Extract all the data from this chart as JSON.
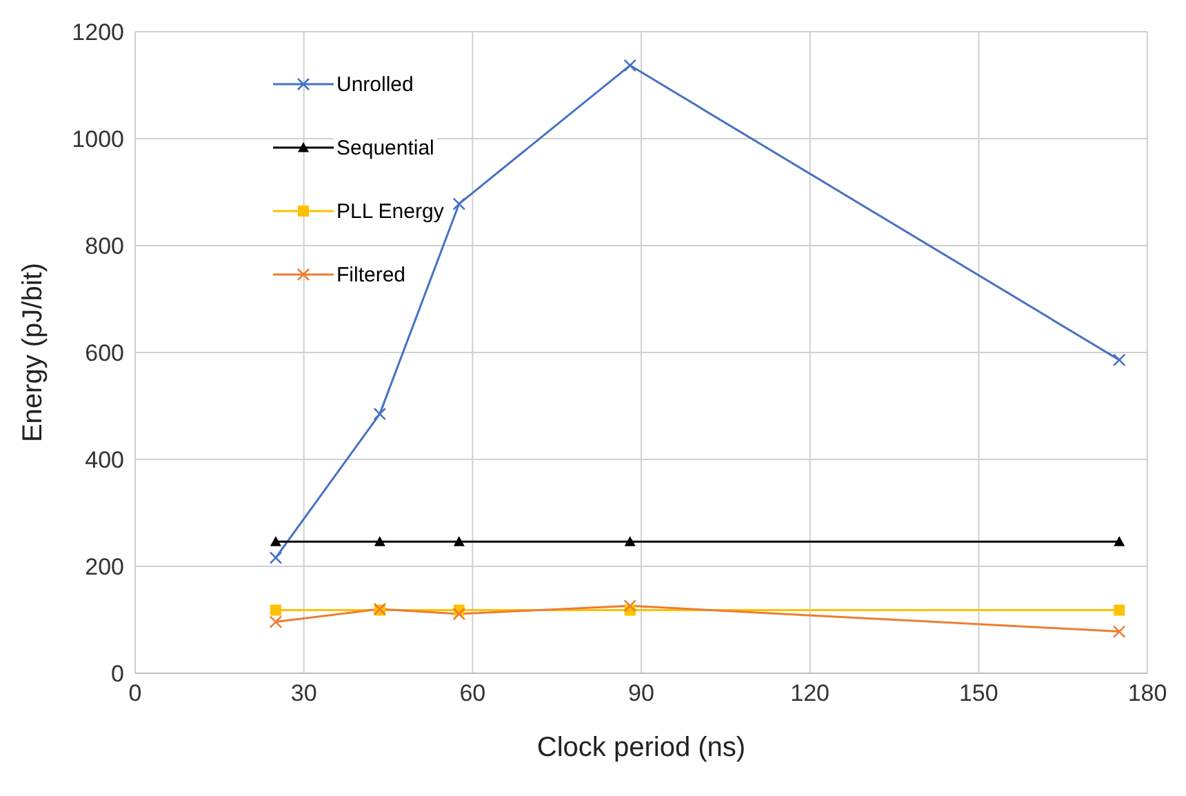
{
  "chart_data": {
    "type": "line",
    "xlabel": "Clock period (ns)",
    "ylabel": "Energy (pJ/bit)",
    "x": [
      25,
      43.5,
      57.6,
      88,
      175
    ],
    "series": [
      {
        "name": "Unrolled",
        "color": "#4472c4",
        "marker": "cross",
        "values": [
          216,
          485,
          878,
          1137,
          586
        ]
      },
      {
        "name": "Sequential",
        "color": "#000000",
        "marker": "triangle",
        "values": [
          246,
          246,
          246,
          246,
          246
        ]
      },
      {
        "name": "PLL Energy",
        "color": "#ffc000",
        "marker": "square",
        "values": [
          118,
          118,
          118,
          118,
          118
        ]
      },
      {
        "name": "Filtered",
        "color": "#ed7d31",
        "marker": "cross",
        "values": [
          96,
          120,
          111,
          126,
          78
        ]
      }
    ],
    "xlim": [
      0,
      180
    ],
    "xticks": [
      0,
      30,
      60,
      90,
      120,
      150,
      180
    ],
    "ylim": [
      0,
      1200
    ],
    "yticks": [
      0,
      200,
      400,
      600,
      800,
      1000,
      1200
    ],
    "grid": true,
    "legend": "top left",
    "line_style": "solid"
  }
}
